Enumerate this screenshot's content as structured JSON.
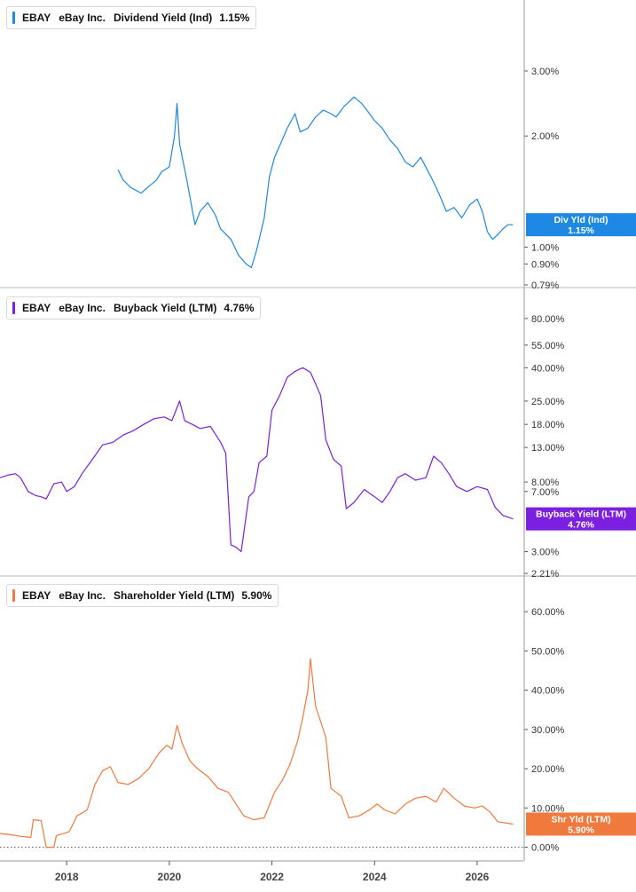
{
  "chart_data": [
    {
      "type": "line",
      "ticker": "EBAY",
      "company": "eBay Inc.",
      "metric": "Dividend Yield (Ind)",
      "last_value": "1.15%",
      "label_box": {
        "name": "Div Yld (Ind)",
        "value": "1.15%"
      },
      "color": "#1e88e5",
      "y_scale": "log",
      "ylim": [
        0.79,
        4.0
      ],
      "y_ticks": [
        {
          "v": 3.0,
          "label": "3.00%"
        },
        {
          "v": 2.0,
          "label": "2.00%"
        },
        {
          "v": 1.0,
          "label": "1.00%"
        },
        {
          "v": 0.9,
          "label": "0.90%"
        },
        {
          "v": 0.79,
          "label": "0.79%"
        }
      ],
      "series": [
        {
          "x": [
            2019.0,
            2019.1,
            2019.25,
            2019.45,
            2019.6,
            2019.75,
            2019.85,
            2020.0,
            2020.1,
            2020.15,
            2020.2,
            2020.35,
            2020.5,
            2020.6,
            2020.75,
            2020.9,
            2021.0,
            2021.2,
            2021.35,
            2021.5,
            2021.6,
            2021.7,
            2021.85,
            2021.95,
            2022.05,
            2022.2,
            2022.3,
            2022.45,
            2022.55,
            2022.7,
            2022.85,
            2023.0,
            2023.15,
            2023.25,
            2023.4,
            2023.6,
            2023.75,
            2023.85,
            2024.0,
            2024.15,
            2024.3,
            2024.45,
            2024.6,
            2024.75,
            2024.9,
            2025.1,
            2025.25,
            2025.4,
            2025.55,
            2025.7,
            2025.85,
            2026.0,
            2026.1,
            2026.2,
            2026.3,
            2026.4,
            2026.5,
            2026.6,
            2026.7
          ],
          "y": [
            1.62,
            1.52,
            1.45,
            1.4,
            1.46,
            1.52,
            1.6,
            1.65,
            2.0,
            2.45,
            1.9,
            1.5,
            1.15,
            1.25,
            1.32,
            1.22,
            1.12,
            1.05,
            0.95,
            0.9,
            0.88,
            0.98,
            1.2,
            1.55,
            1.75,
            1.95,
            2.1,
            2.3,
            2.05,
            2.1,
            2.25,
            2.35,
            2.3,
            2.25,
            2.4,
            2.55,
            2.45,
            2.35,
            2.2,
            2.1,
            1.95,
            1.85,
            1.7,
            1.65,
            1.75,
            1.55,
            1.4,
            1.25,
            1.28,
            1.2,
            1.3,
            1.35,
            1.25,
            1.1,
            1.05,
            1.08,
            1.12,
            1.15,
            1.15
          ]
        }
      ]
    },
    {
      "type": "line",
      "ticker": "EBAY",
      "company": "eBay Inc.",
      "metric": "Buyback Yield (LTM)",
      "last_value": "4.76%",
      "label_box": {
        "name": "Buyback Yield (LTM)",
        "value": "4.76%"
      },
      "color": "#7b1fe0",
      "y_scale": "log",
      "ylim": [
        2.21,
        100.0
      ],
      "y_ticks": [
        {
          "v": 80,
          "label": "80.00%"
        },
        {
          "v": 55,
          "label": "55.00%"
        },
        {
          "v": 40,
          "label": "40.00%"
        },
        {
          "v": 25,
          "label": "25.00%"
        },
        {
          "v": 18,
          "label": "18.00%"
        },
        {
          "v": 13,
          "label": "13.00%"
        },
        {
          "v": 8,
          "label": "8.00%"
        },
        {
          "v": 7,
          "label": "7.00%"
        },
        {
          "v": 3,
          "label": "3.00%"
        },
        {
          "v": 2.21,
          "label": "2.21%"
        }
      ],
      "series": [
        {
          "x": [
            2016.7,
            2016.85,
            2017.0,
            2017.1,
            2017.25,
            2017.4,
            2017.5,
            2017.6,
            2017.75,
            2017.9,
            2018.0,
            2018.15,
            2018.3,
            2018.5,
            2018.7,
            2018.9,
            2019.1,
            2019.3,
            2019.5,
            2019.7,
            2019.9,
            2020.05,
            2020.2,
            2020.3,
            2020.45,
            2020.6,
            2020.8,
            2021.0,
            2021.1,
            2021.2,
            2021.3,
            2021.4,
            2021.55,
            2021.65,
            2021.75,
            2021.9,
            2022.0,
            2022.15,
            2022.3,
            2022.45,
            2022.6,
            2022.75,
            2022.85,
            2022.95,
            2023.05,
            2023.2,
            2023.35,
            2023.45,
            2023.6,
            2023.8,
            2024.0,
            2024.15,
            2024.3,
            2024.45,
            2024.6,
            2024.8,
            2025.0,
            2025.15,
            2025.3,
            2025.45,
            2025.6,
            2025.8,
            2026.0,
            2026.2,
            2026.35,
            2026.5,
            2026.7
          ],
          "y": [
            8.5,
            8.8,
            9.0,
            8.5,
            7.0,
            6.6,
            6.5,
            6.3,
            7.8,
            8.0,
            7.0,
            7.5,
            9.0,
            11.0,
            13.5,
            14.0,
            15.5,
            16.5,
            18.0,
            19.5,
            20.0,
            19.0,
            25.0,
            19.0,
            18.0,
            17.0,
            17.5,
            14.0,
            12.0,
            3.3,
            3.2,
            3.0,
            6.5,
            7.0,
            10.5,
            11.5,
            22.0,
            27.0,
            35.0,
            38.0,
            40.0,
            37.5,
            32.0,
            27.0,
            14.5,
            11.0,
            10.0,
            5.5,
            6.0,
            7.2,
            6.5,
            6.0,
            7.0,
            8.5,
            9.0,
            8.2,
            8.5,
            11.5,
            10.5,
            9.0,
            7.5,
            7.0,
            7.5,
            7.2,
            5.6,
            5.0,
            4.76
          ]
        }
      ]
    },
    {
      "type": "line",
      "ticker": "EBAY",
      "company": "eBay Inc.",
      "metric": "Shareholder Yield (LTM)",
      "last_value": "5.90%",
      "label_box": {
        "name": "Shr Yld (LTM)",
        "value": "5.90%"
      },
      "color": "#f07a3e",
      "y_scale": "linear",
      "ylim": [
        -1.0,
        65.0
      ],
      "zero_line": true,
      "y_ticks": [
        {
          "v": 60,
          "label": "60.00%"
        },
        {
          "v": 50,
          "label": "50.00%"
        },
        {
          "v": 40,
          "label": "40.00%"
        },
        {
          "v": 30,
          "label": "30.00%"
        },
        {
          "v": 20,
          "label": "20.00%"
        },
        {
          "v": 10,
          "label": "10.00%"
        },
        {
          "v": 0,
          "label": "0.00%"
        }
      ],
      "x_ticks": [
        {
          "v": 2018,
          "label": "2018"
        },
        {
          "v": 2020,
          "label": "2020"
        },
        {
          "v": 2022,
          "label": "2022"
        },
        {
          "v": 2024,
          "label": "2024"
        },
        {
          "v": 2026,
          "label": "2026"
        }
      ],
      "series": [
        {
          "x": [
            2016.7,
            2016.9,
            2017.1,
            2017.3,
            2017.35,
            2017.5,
            2017.6,
            2017.75,
            2017.8,
            2017.95,
            2018.05,
            2018.2,
            2018.4,
            2018.55,
            2018.7,
            2018.85,
            2019.0,
            2019.2,
            2019.4,
            2019.6,
            2019.8,
            2019.95,
            2020.05,
            2020.15,
            2020.25,
            2020.4,
            2020.55,
            2020.75,
            2020.95,
            2021.15,
            2021.3,
            2021.45,
            2021.65,
            2021.85,
            2022.05,
            2022.2,
            2022.35,
            2022.5,
            2022.6,
            2022.7,
            2022.75,
            2022.85,
            2022.95,
            2023.05,
            2023.15,
            2023.35,
            2023.5,
            2023.7,
            2023.9,
            2024.05,
            2024.2,
            2024.4,
            2024.6,
            2024.8,
            2025.0,
            2025.2,
            2025.35,
            2025.55,
            2025.75,
            2025.95,
            2026.1,
            2026.25,
            2026.4,
            2026.55,
            2026.7
          ],
          "y": [
            3.5,
            3.2,
            2.8,
            2.5,
            7.0,
            6.8,
            0.0,
            0.0,
            3.0,
            3.5,
            4.0,
            8.0,
            9.5,
            16.0,
            19.5,
            20.5,
            16.5,
            16.0,
            17.5,
            20.0,
            24.0,
            26.0,
            25.0,
            31.0,
            26.5,
            22.0,
            20.0,
            18.0,
            15.0,
            14.0,
            11.0,
            8.0,
            7.0,
            7.5,
            14.0,
            17.0,
            21.0,
            27.0,
            33.0,
            40.0,
            48.0,
            36.0,
            32.0,
            28.0,
            15.0,
            13.0,
            7.5,
            8.0,
            9.5,
            11.0,
            9.5,
            8.5,
            11.0,
            12.5,
            13.0,
            11.5,
            15.0,
            12.5,
            10.5,
            10.0,
            10.5,
            9.0,
            6.5,
            6.2,
            5.9
          ]
        }
      ]
    }
  ]
}
